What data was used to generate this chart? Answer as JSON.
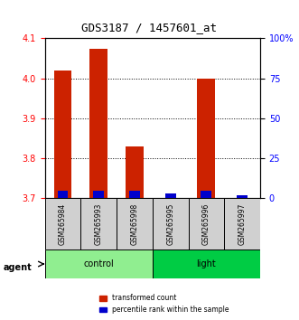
{
  "title": "GDS3187 / 1457601_at",
  "samples": [
    "GSM265984",
    "GSM265993",
    "GSM265998",
    "GSM265995",
    "GSM265996",
    "GSM265997"
  ],
  "groups": [
    {
      "name": "control",
      "color": "#90EE90",
      "samples": [
        "GSM265984",
        "GSM265993",
        "GSM265998"
      ]
    },
    {
      "name": "light",
      "color": "#00CC00",
      "samples": [
        "GSM265995",
        "GSM265996",
        "GSM265997"
      ]
    }
  ],
  "transformed_counts": [
    4.02,
    4.075,
    3.83,
    3.7,
    4.0,
    3.7
  ],
  "percentile_ranks": [
    5.0,
    5.0,
    5.0,
    3.0,
    5.0,
    2.0
  ],
  "ylim_left": [
    3.7,
    4.1
  ],
  "ylim_right": [
    0,
    100
  ],
  "yticks_left": [
    3.7,
    3.8,
    3.9,
    4.0,
    4.1
  ],
  "yticks_right": [
    0,
    25,
    50,
    75,
    100
  ],
  "ytick_labels_right": [
    "0",
    "25",
    "50",
    "75",
    "100%"
  ],
  "bar_color_red": "#CC2200",
  "bar_color_blue": "#0000CC",
  "agent_label": "agent",
  "legend_red": "transformed count",
  "legend_blue": "percentile rank within the sample",
  "bar_width": 0.5,
  "base_value": 3.7,
  "percentile_scale": 0.001
}
